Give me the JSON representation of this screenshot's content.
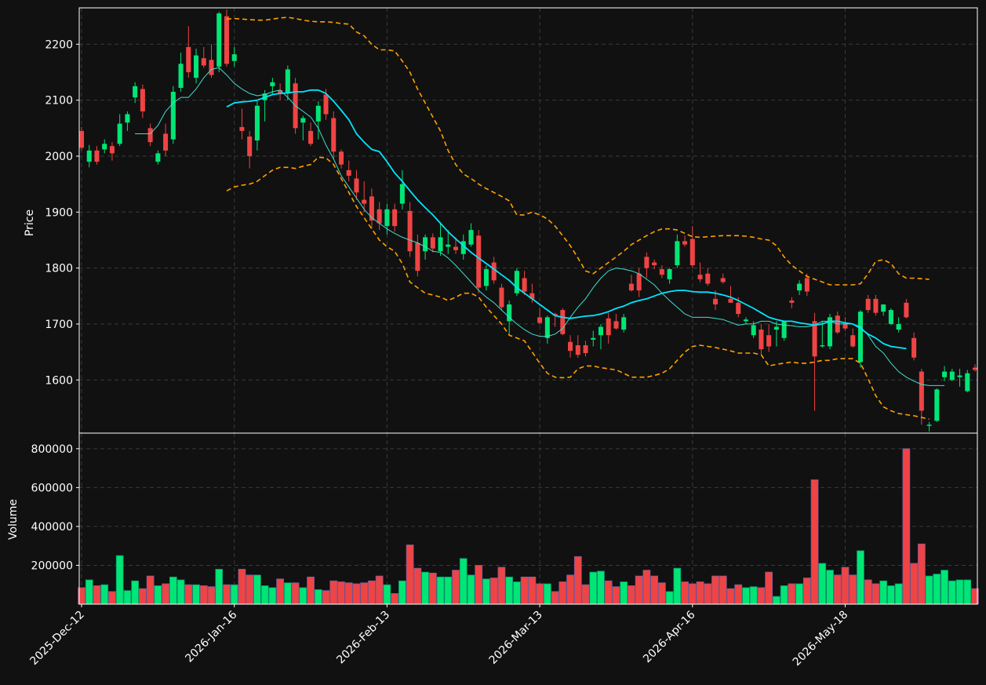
{
  "colors": {
    "background": "#111111",
    "up": "#00e676",
    "down": "#ef4444",
    "sma_fast": "#40e0d0",
    "sma_slow": "#00e5ff",
    "bands": "#ffa000",
    "axes": "#ffffff",
    "grid": "#3a3a3a"
  },
  "chart_data": {
    "type": "candlestick",
    "grid": true,
    "price_axis": {
      "label": "Price",
      "ylim": [
        1505,
        2265
      ],
      "ticks": [
        1600,
        1700,
        1800,
        1900,
        2000,
        2100,
        2200
      ],
      "tick_labels": [
        "1600",
        "1700",
        "1800",
        "1900",
        "2000",
        "2100",
        "2200"
      ]
    },
    "volume_axis": {
      "label": "Volume",
      "ylim": [
        0,
        880000
      ],
      "ticks": [
        200000,
        400000,
        600000,
        800000
      ],
      "tick_labels": [
        "200000",
        "400000",
        "600000",
        "800000"
      ]
    },
    "x_ticks": [
      {
        "index": 0,
        "label": "2025-Dec-12"
      },
      {
        "index": 20,
        "label": "2026-Jan-16"
      },
      {
        "index": 40,
        "label": "2026-Feb-13"
      },
      {
        "index": 60,
        "label": "2026-Mar-13"
      },
      {
        "index": 80,
        "label": "2026-Apr-16"
      },
      {
        "index": 100,
        "label": "2026-May-18"
      }
    ],
    "candles": [
      [
        2045,
        2052,
        2010,
        2015
      ],
      [
        1990,
        2020,
        1980,
        2010
      ],
      [
        2010,
        2018,
        1985,
        1990
      ],
      [
        2012,
        2030,
        2005,
        2022
      ],
      [
        2018,
        2025,
        1992,
        2005
      ],
      [
        2022,
        2075,
        2018,
        2058
      ],
      [
        2060,
        2080,
        2045,
        2075
      ],
      [
        2105,
        2132,
        2095,
        2125
      ],
      [
        2120,
        2128,
        2068,
        2080
      ],
      [
        2050,
        2058,
        2018,
        2025
      ],
      [
        1990,
        2010,
        1985,
        2005
      ],
      [
        2040,
        2058,
        2000,
        2010
      ],
      [
        2030,
        2125,
        2022,
        2115
      ],
      [
        2122,
        2185,
        2115,
        2165
      ],
      [
        2195,
        2232,
        2140,
        2150
      ],
      [
        2140,
        2192,
        2130,
        2180
      ],
      [
        2175,
        2195,
        2158,
        2162
      ],
      [
        2172,
        2200,
        2140,
        2145
      ],
      [
        2160,
        2258,
        2150,
        2255
      ],
      [
        2250,
        2262,
        2160,
        2165
      ],
      [
        2170,
        2195,
        2160,
        2182
      ],
      [
        2052,
        2085,
        2030,
        2045
      ],
      [
        2035,
        2045,
        1978,
        2000
      ],
      [
        2028,
        2098,
        2010,
        2090
      ],
      [
        2100,
        2118,
        2062,
        2112
      ],
      [
        2125,
        2140,
        2110,
        2132
      ],
      [
        2118,
        2130,
        2100,
        2112
      ],
      [
        2112,
        2162,
        2100,
        2155
      ],
      [
        2130,
        2140,
        2040,
        2050
      ],
      [
        2060,
        2072,
        2028,
        2068
      ],
      [
        2045,
        2060,
        2018,
        2022
      ],
      [
        2062,
        2098,
        2030,
        2090
      ],
      [
        2110,
        2120,
        2065,
        2075
      ],
      [
        2068,
        2080,
        1995,
        2008
      ],
      [
        2008,
        2012,
        1978,
        1985
      ],
      [
        1975,
        1992,
        1955,
        1965
      ],
      [
        1960,
        1975,
        1922,
        1935
      ],
      [
        1922,
        1955,
        1900,
        1915
      ],
      [
        1928,
        1942,
        1870,
        1885
      ],
      [
        1905,
        1918,
        1868,
        1880
      ],
      [
        1875,
        1915,
        1860,
        1905
      ],
      [
        1905,
        1915,
        1865,
        1875
      ],
      [
        1915,
        1975,
        1905,
        1950
      ],
      [
        1902,
        1918,
        1820,
        1830
      ],
      [
        1845,
        1860,
        1785,
        1795
      ],
      [
        1830,
        1860,
        1815,
        1855
      ],
      [
        1855,
        1862,
        1828,
        1835
      ],
      [
        1830,
        1882,
        1822,
        1855
      ],
      [
        1838,
        1868,
        1825,
        1842
      ],
      [
        1838,
        1855,
        1825,
        1832
      ],
      [
        1825,
        1860,
        1815,
        1848
      ],
      [
        1842,
        1880,
        1838,
        1868
      ],
      [
        1858,
        1868,
        1755,
        1765
      ],
      [
        1768,
        1805,
        1760,
        1798
      ],
      [
        1810,
        1820,
        1772,
        1778
      ],
      [
        1765,
        1772,
        1725,
        1730
      ],
      [
        1705,
        1742,
        1680,
        1735
      ],
      [
        1755,
        1800,
        1750,
        1795
      ],
      [
        1782,
        1795,
        1752,
        1758
      ],
      [
        1755,
        1772,
        1738,
        1745
      ],
      [
        1712,
        1728,
        1700,
        1702
      ],
      [
        1675,
        1715,
        1665,
        1712
      ],
      [
        1718,
        1720,
        1695,
        1715
      ],
      [
        1725,
        1728,
        1680,
        1682
      ],
      [
        1668,
        1680,
        1640,
        1652
      ],
      [
        1662,
        1680,
        1640,
        1645
      ],
      [
        1662,
        1670,
        1642,
        1648
      ],
      [
        1672,
        1688,
        1660,
        1675
      ],
      [
        1680,
        1700,
        1655,
        1695
      ],
      [
        1710,
        1720,
        1665,
        1680
      ],
      [
        1705,
        1718,
        1690,
        1692
      ],
      [
        1690,
        1718,
        1685,
        1712
      ],
      [
        1772,
        1788,
        1758,
        1760
      ],
      [
        1790,
        1800,
        1748,
        1760
      ],
      [
        1820,
        1828,
        1782,
        1800
      ],
      [
        1810,
        1815,
        1798,
        1805
      ],
      [
        1798,
        1805,
        1782,
        1788
      ],
      [
        1780,
        1800,
        1772,
        1798
      ],
      [
        1805,
        1860,
        1800,
        1848
      ],
      [
        1848,
        1858,
        1838,
        1842
      ],
      [
        1852,
        1875,
        1800,
        1805
      ],
      [
        1788,
        1810,
        1775,
        1780
      ],
      [
        1790,
        1800,
        1768,
        1772
      ],
      [
        1745,
        1760,
        1725,
        1735
      ],
      [
        1782,
        1790,
        1772,
        1775
      ],
      [
        1745,
        1768,
        1738,
        1738
      ],
      [
        1738,
        1748,
        1712,
        1718
      ],
      [
        1705,
        1712,
        1700,
        1708
      ],
      [
        1680,
        1705,
        1675,
        1698
      ],
      [
        1690,
        1700,
        1645,
        1655
      ],
      [
        1680,
        1700,
        1650,
        1660
      ],
      [
        1690,
        1705,
        1660,
        1695
      ],
      [
        1675,
        1705,
        1670,
        1705
      ],
      [
        1742,
        1748,
        1728,
        1738
      ],
      [
        1760,
        1778,
        1752,
        1772
      ],
      [
        1782,
        1790,
        1750,
        1758
      ],
      [
        1705,
        1720,
        1545,
        1642
      ],
      [
        1660,
        1705,
        1658,
        1662
      ],
      [
        1660,
        1718,
        1655,
        1712
      ],
      [
        1715,
        1722,
        1682,
        1685
      ],
      [
        1700,
        1712,
        1688,
        1692
      ],
      [
        1680,
        1692,
        1658,
        1660
      ],
      [
        1632,
        1725,
        1622,
        1722
      ],
      [
        1745,
        1752,
        1720,
        1725
      ],
      [
        1745,
        1752,
        1715,
        1720
      ],
      [
        1722,
        1735,
        1715,
        1735
      ],
      [
        1700,
        1728,
        1698,
        1725
      ],
      [
        1690,
        1712,
        1685,
        1700
      ],
      [
        1738,
        1745,
        1710,
        1712
      ],
      [
        1675,
        1685,
        1635,
        1640
      ],
      [
        1615,
        1620,
        1520,
        1545
      ],
      [
        1518,
        1525,
        1508,
        1520
      ],
      [
        1527,
        1585,
        1525,
        1583
      ],
      [
        1605,
        1625,
        1598,
        1615
      ],
      [
        1600,
        1620,
        1598,
        1615
      ],
      [
        1605,
        1620,
        1588,
        1608
      ],
      [
        1580,
        1618,
        1578,
        1612
      ],
      [
        1622,
        1628,
        1615,
        1618
      ]
    ],
    "volume": [
      85000,
      125000,
      95000,
      100000,
      65000,
      250000,
      70000,
      120000,
      80000,
      145000,
      95000,
      105000,
      140000,
      125000,
      100000,
      100000,
      95000,
      90000,
      180000,
      100000,
      100000,
      180000,
      150000,
      150000,
      95000,
      85000,
      130000,
      110000,
      110000,
      85000,
      140000,
      75000,
      70000,
      120000,
      115000,
      110000,
      105000,
      110000,
      120000,
      145000,
      100000,
      55000,
      120000,
      305000,
      185000,
      165000,
      160000,
      140000,
      140000,
      175000,
      235000,
      150000,
      200000,
      130000,
      135000,
      190000,
      140000,
      115000,
      140000,
      140000,
      105000,
      105000,
      65000,
      115000,
      150000,
      245000,
      100000,
      165000,
      170000,
      120000,
      90000,
      115000,
      95000,
      145000,
      175000,
      145000,
      110000,
      65000,
      185000,
      115000,
      105000,
      115000,
      105000,
      145000,
      145000,
      80000,
      100000,
      85000,
      90000,
      85000,
      165000,
      40000,
      95000,
      105000,
      105000,
      135000,
      640000,
      210000,
      175000,
      150000,
      190000,
      150000,
      275000,
      125000,
      105000,
      120000,
      95000,
      105000,
      800000,
      210000,
      310000,
      145000,
      155000,
      175000,
      120000,
      125000,
      125000,
      80000
    ],
    "sma_fast": {
      "start": 7,
      "values": [
        2040,
        2040,
        2040,
        2055,
        2080,
        2095,
        2105,
        2105,
        2120,
        2140,
        2155,
        2158,
        2145,
        2130,
        2120,
        2112,
        2108,
        2110,
        2115,
        2118,
        2105,
        2090,
        2080,
        2070,
        2050,
        2020,
        1995,
        1965,
        1945,
        1925,
        1905,
        1890,
        1880,
        1870,
        1862,
        1855,
        1850,
        1845,
        1838,
        1830,
        1828,
        1818,
        1805,
        1790,
        1775,
        1760,
        1748,
        1738,
        1725,
        1712,
        1700,
        1690,
        1682,
        1678,
        1678,
        1682,
        1692,
        1712,
        1730,
        1745,
        1765,
        1782,
        1795,
        1800,
        1798,
        1795,
        1790,
        1780,
        1770,
        1755,
        1742,
        1730,
        1718,
        1712,
        1712,
        1712,
        1710,
        1708,
        1703,
        1698,
        1700,
        1700,
        1705,
        1705,
        1700,
        1698,
        1697,
        1695,
        1695,
        1698,
        1705,
        1705,
        1700,
        1700,
        1700,
        1695,
        1680,
        1660,
        1648,
        1630,
        1615,
        1605,
        1598,
        1592,
        1590,
        1590,
        1590
      ]
    },
    "sma_slow": {
      "start": 19,
      "values": [
        2088,
        2095,
        2097,
        2098,
        2100,
        2105,
        2110,
        2112,
        2113,
        2115,
        2115,
        2118,
        2118,
        2112,
        2098,
        2082,
        2065,
        2040,
        2025,
        2012,
        2008,
        1990,
        1970,
        1955,
        1938,
        1922,
        1908,
        1895,
        1880,
        1865,
        1852,
        1840,
        1828,
        1818,
        1808,
        1798,
        1788,
        1778,
        1765,
        1755,
        1745,
        1735,
        1725,
        1715,
        1712,
        1710,
        1712,
        1714,
        1715,
        1718,
        1722,
        1728,
        1732,
        1738,
        1742,
        1745,
        1750,
        1755,
        1758,
        1760,
        1760,
        1758,
        1757,
        1757,
        1755,
        1752,
        1748,
        1742,
        1735,
        1728,
        1720,
        1712,
        1708,
        1705,
        1705,
        1702,
        1700,
        1698,
        1700,
        1705,
        1705,
        1702,
        1700,
        1692,
        1682,
        1675,
        1665,
        1660,
        1658,
        1656
      ]
    },
    "bb_upper": {
      "start": 19,
      "values": [
        2245,
        2246,
        2245,
        2244,
        2243,
        2243,
        2245,
        2247,
        2248,
        2246,
        2243,
        2241,
        2240,
        2240,
        2239,
        2237,
        2236,
        2222,
        2215,
        2200,
        2190,
        2190,
        2188,
        2170,
        2150,
        2120,
        2095,
        2070,
        2045,
        2010,
        1985,
        1968,
        1960,
        1950,
        1942,
        1935,
        1928,
        1920,
        1895,
        1895,
        1900,
        1895,
        1888,
        1875,
        1858,
        1840,
        1818,
        1795,
        1790,
        1800,
        1810,
        1820,
        1830,
        1842,
        1850,
        1858,
        1865,
        1870,
        1870,
        1868,
        1862,
        1856,
        1855,
        1856,
        1857,
        1858,
        1858,
        1858,
        1857,
        1855,
        1852,
        1850,
        1840,
        1820,
        1805,
        1795,
        1785,
        1780,
        1775,
        1770,
        1770,
        1770,
        1770,
        1772,
        1790,
        1812,
        1815,
        1808,
        1790,
        1782,
        1782,
        1781,
        1780
      ]
    },
    "bb_lower": {
      "start": 19,
      "values": [
        1938,
        1945,
        1948,
        1950,
        1955,
        1965,
        1975,
        1980,
        1980,
        1978,
        1982,
        1985,
        1998,
        1997,
        1985,
        1960,
        1935,
        1910,
        1890,
        1870,
        1850,
        1838,
        1830,
        1808,
        1775,
        1765,
        1755,
        1752,
        1748,
        1742,
        1748,
        1755,
        1755,
        1748,
        1730,
        1715,
        1700,
        1680,
        1675,
        1670,
        1650,
        1630,
        1612,
        1605,
        1604,
        1605,
        1620,
        1625,
        1625,
        1622,
        1620,
        1618,
        1612,
        1605,
        1605,
        1605,
        1608,
        1612,
        1620,
        1635,
        1650,
        1660,
        1662,
        1660,
        1658,
        1655,
        1652,
        1648,
        1648,
        1648,
        1645,
        1625,
        1628,
        1630,
        1632,
        1630,
        1630,
        1632,
        1635,
        1635,
        1638,
        1638,
        1638,
        1630,
        1602,
        1572,
        1552,
        1545,
        1540,
        1538,
        1536,
        1533,
        1530
      ]
    }
  }
}
